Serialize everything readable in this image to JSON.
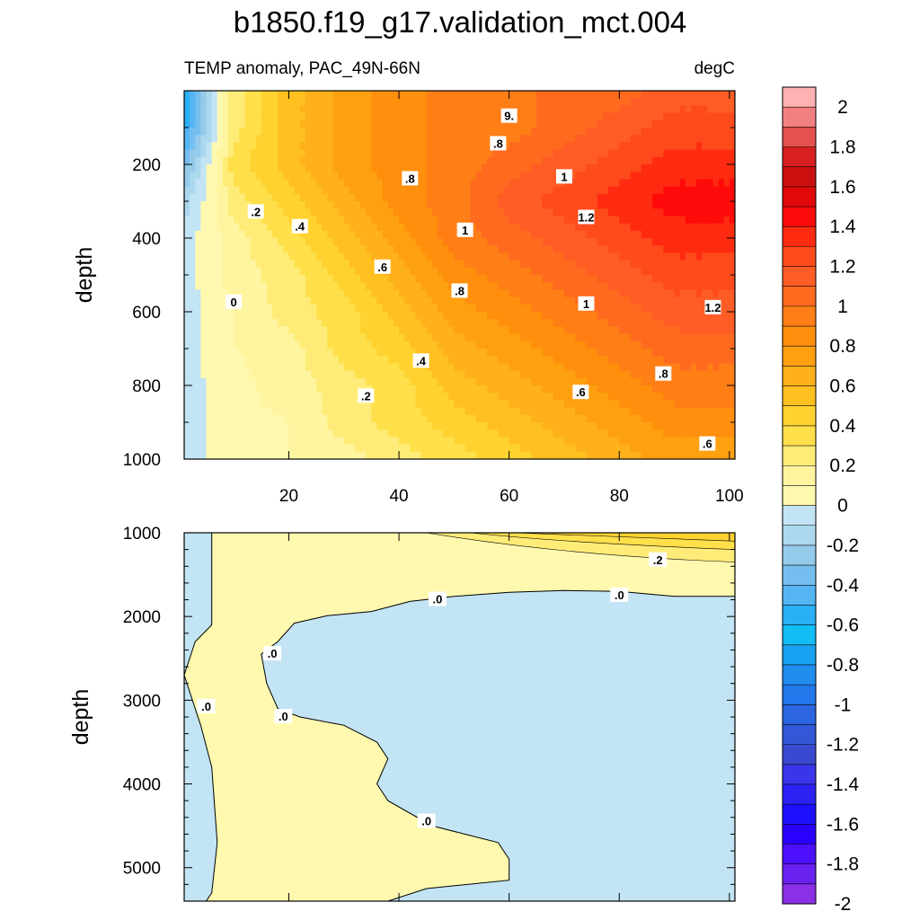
{
  "title": "b1850.f19_g17.validation_mct.004",
  "subtitle_left": "TEMP anomaly, PAC_49N-66N",
  "subtitle_right": "degC",
  "chart_data": [
    {
      "type": "heatmap",
      "panel": "upper",
      "variable": "TEMP anomaly",
      "ylabel": "depth",
      "xlim": [
        1,
        101
      ],
      "ylim": [
        1000,
        0
      ],
      "x_ticks": [
        20,
        40,
        60,
        80,
        100
      ],
      "y_ticks": [
        200,
        400,
        600,
        800,
        1000
      ],
      "x": [
        1,
        10,
        20,
        30,
        40,
        50,
        60,
        70,
        80,
        90,
        100
      ],
      "y": [
        0,
        100,
        200,
        300,
        400,
        500,
        600,
        700,
        800,
        900,
        1000
      ],
      "z": [
        [
          -0.6,
          0.2,
          0.5,
          0.7,
          0.8,
          0.9,
          0.9,
          1.0,
          1.0,
          1.1,
          1.1
        ],
        [
          -0.6,
          0.2,
          0.5,
          0.7,
          0.8,
          0.9,
          0.9,
          1.0,
          1.1,
          1.2,
          1.2
        ],
        [
          -0.4,
          0.3,
          0.5,
          0.7,
          0.8,
          0.9,
          1.0,
          1.1,
          1.2,
          1.3,
          1.3
        ],
        [
          -0.2,
          0.2,
          0.4,
          0.6,
          0.8,
          0.9,
          1.1,
          1.2,
          1.3,
          1.4,
          1.4
        ],
        [
          -0.1,
          0.1,
          0.3,
          0.5,
          0.7,
          0.9,
          1.0,
          1.1,
          1.2,
          1.3,
          1.3
        ],
        [
          -0.1,
          0.1,
          0.2,
          0.4,
          0.6,
          0.8,
          0.9,
          1.0,
          1.1,
          1.2,
          1.2
        ],
        [
          -0.1,
          0.05,
          0.2,
          0.3,
          0.5,
          0.7,
          0.8,
          0.9,
          1.0,
          1.1,
          1.1
        ],
        [
          -0.1,
          0.05,
          0.1,
          0.3,
          0.4,
          0.6,
          0.7,
          0.8,
          0.9,
          1.0,
          1.0
        ],
        [
          -0.1,
          0.02,
          0.1,
          0.2,
          0.3,
          0.5,
          0.6,
          0.7,
          0.8,
          0.9,
          0.9
        ],
        [
          -0.1,
          0.02,
          0.05,
          0.2,
          0.3,
          0.4,
          0.5,
          0.6,
          0.7,
          0.8,
          0.8
        ],
        [
          -0.1,
          0.01,
          0.05,
          0.1,
          0.2,
          0.3,
          0.4,
          0.5,
          0.6,
          0.7,
          0.7
        ]
      ],
      "contour_labels": [
        {
          "text": ".2",
          "x": 14,
          "y": 330
        },
        {
          "text": ".4",
          "x": 22,
          "y": 370
        },
        {
          "text": ".6",
          "x": 37,
          "y": 480
        },
        {
          "text": ".8",
          "x": 42,
          "y": 240
        },
        {
          "text": "1",
          "x": 52,
          "y": 380
        },
        {
          "text": ".8",
          "x": 58,
          "y": 145
        },
        {
          "text": "9.",
          "x": 60,
          "y": 70
        },
        {
          "text": "1",
          "x": 70,
          "y": 235
        },
        {
          "text": "1.2",
          "x": 74,
          "y": 345
        },
        {
          "text": "0",
          "x": 10,
          "y": 575
        },
        {
          "text": ".8",
          "x": 51,
          "y": 545
        },
        {
          "text": "1",
          "x": 74,
          "y": 580
        },
        {
          "text": "1.2",
          "x": 97,
          "y": 590
        },
        {
          "text": ".4",
          "x": 44,
          "y": 735
        },
        {
          "text": ".2",
          "x": 34,
          "y": 830
        },
        {
          "text": ".6",
          "x": 73,
          "y": 820
        },
        {
          "text": ".8",
          "x": 88,
          "y": 770
        },
        {
          "text": ".6",
          "x": 96,
          "y": 960
        }
      ]
    },
    {
      "type": "heatmap",
      "panel": "lower",
      "variable": "TEMP anomaly",
      "ylabel": "depth",
      "xlim": [
        1,
        101
      ],
      "ylim": [
        5400,
        1000
      ],
      "y_ticks": [
        1000,
        2000,
        3000,
        4000,
        5000
      ],
      "regions": [
        {
          "sign": "positive",
          "description": "depth 1000-1800 near-zero positive, up to ~0.4 at top right"
        },
        {
          "sign": "positive",
          "description": "x 6-25 depths 1800-3600 and x 6-60 depths 3600-5300 between 0 and 0.2"
        },
        {
          "sign": "negative",
          "description": "remaining area between -0.2 and 0"
        }
      ],
      "contour_labels": [
        {
          "text": ".2",
          "x": 87,
          "y": 1330
        },
        {
          "text": ".0",
          "x": 80,
          "y": 1750
        },
        {
          "text": ".0",
          "x": 47,
          "y": 1800
        },
        {
          "text": ".0",
          "x": 17,
          "y": 2450
        },
        {
          "text": ".0",
          "x": 5,
          "y": 3080
        },
        {
          "text": ".0",
          "x": 19,
          "y": 3200
        },
        {
          "text": ".0",
          "x": 45,
          "y": 4450
        }
      ]
    }
  ],
  "colorbar": {
    "labels": [
      "2",
      "1.8",
      "1.6",
      "1.4",
      "1.2",
      "1",
      "0.8",
      "0.6",
      "0.4",
      "0.2",
      "0",
      "-0.2",
      "-0.4",
      "-0.6",
      "-0.8",
      "-1",
      "-1.2",
      "-1.4",
      "-1.6",
      "-1.8",
      "-2"
    ],
    "colors": [
      "#ffb2b2",
      "#f38080",
      "#e55050",
      "#d92020",
      "#cc1010",
      "#e00808",
      "#ff0a0a",
      "#ff2b10",
      "#ff4a1c",
      "#ff5c26",
      "#ff6a1e",
      "#ff7e16",
      "#ff8f0c",
      "#ffa010",
      "#ffb01a",
      "#ffc020",
      "#ffd230",
      "#ffe04a",
      "#ffec78",
      "#fff5a0",
      "#fff9b0",
      "#c2e4f4",
      "#acd8ee",
      "#94cbeb",
      "#75bff0",
      "#55b5f3",
      "#2ab0f5",
      "#12bdf6",
      "#1aa2f2",
      "#1f8cee",
      "#2277ea",
      "#2b66e0",
      "#3258d8",
      "#3a4ad0",
      "#3a35e8",
      "#2c22f4",
      "#1c10ff",
      "#2a00ff",
      "#4c10ff",
      "#6a22f0",
      "#8a30e6"
    ]
  }
}
